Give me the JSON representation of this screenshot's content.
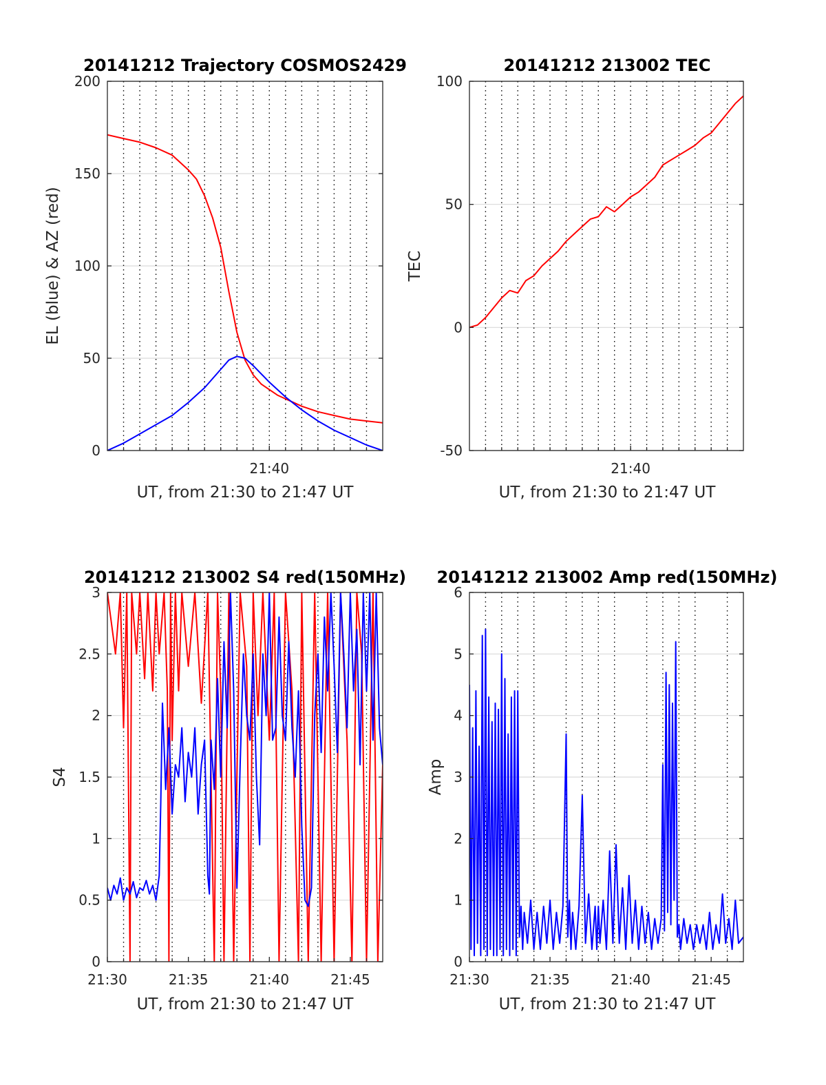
{
  "figure": {
    "background": "#ffffff",
    "colors": {
      "blue": "#0000ff",
      "red": "#ff0000",
      "grid": "#d9d9d9",
      "axis": "#262626"
    }
  },
  "chart_data": [
    {
      "id": "trajectory",
      "type": "line",
      "title": "20141212 Trajectory COSMOS2429",
      "xlabel": "UT, from 21:30 to 21:47 UT",
      "ylabel": "EL (blue) & AZ (red)",
      "xlim": [
        0,
        17
      ],
      "ylim": [
        0,
        200
      ],
      "x_ticks": [
        {
          "value": 10,
          "label": "21:40"
        }
      ],
      "y_ticks": [
        {
          "value": 0,
          "label": "0"
        },
        {
          "value": 50,
          "label": "50"
        },
        {
          "value": 100,
          "label": "100"
        },
        {
          "value": 150,
          "label": "150"
        },
        {
          "value": 200,
          "label": "200"
        }
      ],
      "dotted_grid_x": [
        1,
        2,
        3,
        4,
        5,
        6,
        7,
        8,
        9,
        10,
        11,
        12,
        13,
        14,
        15,
        16
      ],
      "grid": true,
      "series": [
        {
          "color": "#ff0000",
          "x": [
            0,
            1,
            2,
            3,
            4,
            5,
            5.5,
            6,
            6.5,
            7,
            7.5,
            8,
            8.5,
            9,
            9.5,
            10,
            10.5,
            11,
            11.5,
            12,
            13,
            14,
            15,
            16,
            17
          ],
          "y": [
            171,
            169,
            167,
            164,
            160,
            152,
            147,
            138,
            126,
            110,
            86,
            64,
            49,
            41,
            36,
            33,
            30,
            28,
            26,
            24,
            21,
            19,
            17,
            16,
            15
          ]
        },
        {
          "color": "#0000ff",
          "x": [
            0,
            1,
            2,
            3,
            4,
            5,
            6,
            7,
            7.5,
            8,
            8.5,
            9,
            10,
            11,
            12,
            13,
            14,
            15,
            16,
            17
          ],
          "y": [
            0,
            4,
            9,
            14,
            19,
            26,
            34,
            44,
            49,
            51,
            50,
            46,
            37,
            29,
            22,
            16,
            11,
            7,
            3,
            0
          ]
        }
      ]
    },
    {
      "id": "tec",
      "type": "line",
      "title": "20141212 213002 TEC",
      "xlabel": "UT, from 21:30 to 21:47 UT",
      "ylabel": "TEC",
      "xlim": [
        0,
        17
      ],
      "ylim": [
        -50,
        100
      ],
      "x_ticks": [
        {
          "value": 10,
          "label": "21:40"
        }
      ],
      "y_ticks": [
        {
          "value": -50,
          "label": "-50"
        },
        {
          "value": 0,
          "label": "0"
        },
        {
          "value": 50,
          "label": "50"
        },
        {
          "value": 100,
          "label": "100"
        }
      ],
      "dotted_grid_x": [
        1,
        2,
        3,
        4,
        5,
        6,
        7,
        8,
        9,
        10,
        11,
        12,
        13,
        14,
        15,
        16
      ],
      "grid": true,
      "series": [
        {
          "color": "#ff0000",
          "x": [
            0,
            0.5,
            1,
            1.5,
            2,
            2.5,
            3,
            3.5,
            4,
            4.5,
            5,
            5.5,
            6,
            6.5,
            7,
            7.5,
            8,
            8.5,
            9,
            9.5,
            10,
            10.5,
            11,
            11.5,
            12,
            12.5,
            13,
            13.5,
            14,
            14.5,
            15,
            15.5,
            16,
            16.5,
            17
          ],
          "y": [
            0,
            1,
            4,
            8,
            12,
            15,
            14,
            19,
            21,
            25,
            28,
            31,
            35,
            38,
            41,
            44,
            45,
            49,
            47,
            50,
            53,
            55,
            58,
            61,
            66,
            68,
            70,
            72,
            74,
            77,
            79,
            83,
            87,
            91,
            94
          ]
        }
      ]
    },
    {
      "id": "s4",
      "type": "line",
      "title": "20141212 213002 S4 red(150MHz)",
      "xlabel": "UT, from 21:30 to 21:47 UT",
      "ylabel": "S4",
      "xlim": [
        0,
        17
      ],
      "ylim": [
        0,
        3
      ],
      "x_ticks": [
        {
          "value": 0,
          "label": "21:30"
        },
        {
          "value": 5,
          "label": "21:35"
        },
        {
          "value": 10,
          "label": "21:40"
        },
        {
          "value": 15,
          "label": "21:45"
        }
      ],
      "y_ticks": [
        {
          "value": 0,
          "label": "0"
        },
        {
          "value": 0.5,
          "label": "0.5"
        },
        {
          "value": 1,
          "label": "1"
        },
        {
          "value": 1.5,
          "label": "1.5"
        },
        {
          "value": 2,
          "label": "2"
        },
        {
          "value": 2.5,
          "label": "2.5"
        },
        {
          "value": 3,
          "label": "3"
        }
      ],
      "dotted_grid_x": [
        1,
        2,
        3,
        4,
        6,
        7,
        8,
        9,
        11,
        12,
        13,
        14,
        16
      ],
      "grid": true,
      "series": [
        {
          "color": "#ff0000",
          "x": [
            0,
            0.5,
            0.8,
            1,
            1.2,
            1.4,
            1.5,
            1.8,
            2,
            2.3,
            2.5,
            2.8,
            3,
            3.2,
            3.5,
            3.7,
            3.8,
            3.9,
            4,
            4.2,
            4.4,
            4.6,
            5,
            5.4,
            5.8,
            6.2,
            6.6,
            6.8,
            7,
            7.2,
            7.5,
            7.8,
            8.2,
            8.6,
            8.8,
            9,
            9.3,
            9.6,
            10,
            10.3,
            10.6,
            11,
            11.4,
            11.8,
            12,
            12.4,
            12.8,
            13.2,
            13.6,
            14,
            14.4,
            14.8,
            15.1,
            15.4,
            15.7,
            16,
            16.4,
            16.7,
            17
          ],
          "y": [
            3,
            2.5,
            3,
            1.9,
            3,
            0,
            3,
            2.5,
            3,
            2.3,
            3,
            2.2,
            3,
            2.5,
            3,
            2.2,
            0,
            3,
            1.8,
            3,
            2.2,
            3,
            2.4,
            3,
            2.1,
            3,
            0,
            3,
            2.2,
            0,
            3,
            0,
            3,
            2.4,
            0,
            3,
            2,
            3,
            1.8,
            3,
            0,
            3,
            2.2,
            0,
            3,
            0,
            3,
            0,
            3,
            0,
            3,
            1.8,
            0,
            3,
            2.5,
            0,
            3,
            0,
            1.6
          ]
        },
        {
          "color": "#0000ff",
          "x": [
            0,
            0.2,
            0.4,
            0.6,
            0.8,
            1,
            1.2,
            1.4,
            1.6,
            1.8,
            2,
            2.2,
            2.4,
            2.6,
            2.8,
            3,
            3.2,
            3.3,
            3.4,
            3.6,
            3.8,
            4,
            4.2,
            4.4,
            4.6,
            4.8,
            5,
            5.2,
            5.4,
            5.6,
            5.8,
            6,
            6.2,
            6.3,
            6.4,
            6.6,
            6.8,
            7,
            7.2,
            7.4,
            7.6,
            7.8,
            8,
            8.2,
            8.4,
            8.6,
            8.8,
            9,
            9.2,
            9.4,
            9.6,
            9.8,
            10,
            10.2,
            10.4,
            10.6,
            10.8,
            11,
            11.2,
            11.4,
            11.6,
            11.8,
            12,
            12.2,
            12.4,
            12.6,
            12.8,
            13,
            13.2,
            13.4,
            13.6,
            13.8,
            14,
            14.2,
            14.4,
            14.6,
            14.8,
            15,
            15.2,
            15.4,
            15.6,
            15.8,
            16,
            16.2,
            16.4,
            16.6,
            16.8,
            17
          ],
          "y": [
            0.6,
            0.5,
            0.62,
            0.55,
            0.68,
            0.5,
            0.6,
            0.55,
            0.65,
            0.52,
            0.6,
            0.58,
            0.66,
            0.55,
            0.62,
            0.5,
            0.7,
            1.3,
            2.1,
            1.4,
            1.9,
            1.2,
            1.6,
            1.5,
            1.9,
            1.3,
            1.7,
            1.5,
            1.9,
            1.2,
            1.6,
            1.8,
            0.7,
            0.55,
            1.8,
            1.4,
            2.3,
            1.5,
            2.6,
            1.9,
            3,
            2.2,
            0.6,
            1.6,
            2.5,
            2.0,
            1.8,
            2.5,
            1.5,
            0.95,
            2.5,
            2.0,
            3,
            1.8,
            1.9,
            2.8,
            2.0,
            1.8,
            2.6,
            1.9,
            1.5,
            2.2,
            1.1,
            0.5,
            0.45,
            0.6,
            2.0,
            2.5,
            1.7,
            2.8,
            2.2,
            3,
            2.4,
            1.7,
            3,
            2.5,
            1.9,
            3,
            2.2,
            2.7,
            1.6,
            3,
            2.2,
            3,
            1.8,
            3,
            1.9,
            1.6
          ]
        }
      ]
    },
    {
      "id": "amp",
      "type": "line",
      "title": "20141212 213002 Amp red(150MHz)",
      "xlabel": "UT, from 21:30 to 21:47 UT",
      "ylabel": "Amp",
      "xlim": [
        0,
        17
      ],
      "ylim": [
        0,
        6
      ],
      "x_ticks": [
        {
          "value": 0,
          "label": "21:30"
        },
        {
          "value": 5,
          "label": "21:35"
        },
        {
          "value": 10,
          "label": "21:40"
        },
        {
          "value": 15,
          "label": "21:45"
        }
      ],
      "y_ticks": [
        {
          "value": 0,
          "label": "0"
        },
        {
          "value": 1,
          "label": "1"
        },
        {
          "value": 2,
          "label": "2"
        },
        {
          "value": 3,
          "label": "3"
        },
        {
          "value": 4,
          "label": "4"
        },
        {
          "value": 5,
          "label": "5"
        },
        {
          "value": 6,
          "label": "6"
        }
      ],
      "dotted_grid_x": [
        1,
        2,
        3,
        4,
        6,
        7,
        8,
        9,
        11,
        12,
        13,
        14,
        16
      ],
      "grid": true,
      "series": [
        {
          "color": "#0000ff",
          "x": [
            0,
            0.1,
            0.2,
            0.3,
            0.4,
            0.5,
            0.6,
            0.7,
            0.8,
            0.9,
            1,
            1.1,
            1.2,
            1.3,
            1.4,
            1.5,
            1.6,
            1.7,
            1.8,
            1.9,
            2,
            2.1,
            2.2,
            2.3,
            2.4,
            2.5,
            2.6,
            2.7,
            2.8,
            2.9,
            3.0,
            3.1,
            3.2,
            3.3,
            3.4,
            3.6,
            3.8,
            4.0,
            4.2,
            4.4,
            4.6,
            4.8,
            5.0,
            5.2,
            5.4,
            5.6,
            5.8,
            6.0,
            6.1,
            6.2,
            6.3,
            6.4,
            6.6,
            6.8,
            7.0,
            7.2,
            7.4,
            7.6,
            7.8,
            7.9,
            8.0,
            8.1,
            8.3,
            8.5,
            8.7,
            8.9,
            9.1,
            9.3,
            9.5,
            9.7,
            9.9,
            10.1,
            10.3,
            10.5,
            10.7,
            10.9,
            11.1,
            11.3,
            11.5,
            11.7,
            11.9,
            12.0,
            12.1,
            12.2,
            12.3,
            12.4,
            12.5,
            12.6,
            12.7,
            12.8,
            12.9,
            13.0,
            13.1,
            13.3,
            13.5,
            13.7,
            13.9,
            14.1,
            14.3,
            14.5,
            14.7,
            14.9,
            15.1,
            15.3,
            15.5,
            15.7,
            15.9,
            16.1,
            16.3,
            16.5,
            16.7,
            17
          ],
          "y": [
            4.5,
            0.2,
            3.8,
            0.1,
            4.4,
            0.3,
            3.5,
            0.1,
            5.3,
            0.2,
            5.4,
            0.1,
            4.3,
            0.2,
            3.9,
            0.1,
            4.2,
            0.1,
            4.1,
            0.2,
            5.0,
            0.1,
            4.6,
            0.2,
            3.7,
            0.1,
            4.3,
            0.2,
            4.4,
            0.1,
            4.4,
            0.4,
            0.9,
            0.2,
            0.8,
            0.3,
            1.0,
            0.2,
            0.8,
            0.2,
            0.9,
            0.3,
            1.0,
            0.2,
            0.8,
            0.3,
            0.9,
            3.7,
            0.4,
            1.0,
            0.2,
            0.8,
            0.2,
            0.9,
            2.7,
            0.3,
            1.1,
            0.2,
            0.9,
            0.2,
            0.9,
            0.3,
            1.0,
            0.2,
            1.8,
            0.3,
            1.9,
            0.3,
            1.2,
            0.2,
            1.4,
            0.3,
            1.0,
            0.2,
            0.9,
            0.3,
            0.8,
            0.2,
            0.7,
            0.3,
            0.7,
            3.2,
            0.5,
            4.7,
            0.8,
            4.5,
            0.6,
            4.2,
            1.0,
            5.2,
            0.4,
            0.6,
            0.2,
            0.7,
            0.3,
            0.6,
            0.2,
            0.6,
            0.3,
            0.6,
            0.2,
            0.8,
            0.2,
            0.6,
            0.3,
            1.1,
            0.3,
            0.7,
            0.2,
            1.0,
            0.3,
            0.4
          ]
        }
      ]
    }
  ]
}
